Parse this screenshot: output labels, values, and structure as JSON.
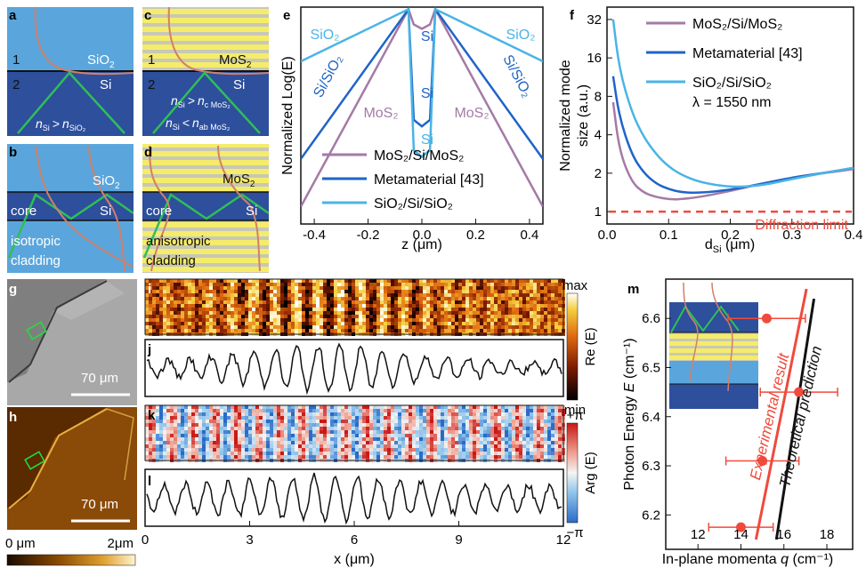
{
  "colors": {
    "sio2": "#5aa6dc",
    "si_dark": "#2d4f9c",
    "mos2_yellow": "#f5ec6a",
    "mos2_gray": "#c8c8b6",
    "purple": "#a47aa6",
    "blue": "#1f64c8",
    "light_blue": "#4ab4e6",
    "red": "#f04a3c",
    "black": "#111111",
    "green": "#2fbf57",
    "mode_curve": "#d0806a"
  },
  "panels": {
    "a": {
      "letter": "a",
      "label_1": "1",
      "label_2": "2",
      "material_top": "SiO",
      "material_top_sub": "2",
      "material_core": "Si",
      "cond_n": "n",
      "cond_si_sub": "Si",
      "cond_op": ">",
      "cond_n2": "n",
      "cond_sio2_sub": "SiO₂"
    },
    "b": {
      "letter": "b",
      "material_top": "SiO",
      "material_top_sub": "2",
      "material_core": "Si",
      "core_label": "core",
      "cladding_line1": "isotropic",
      "cladding_line2": "cladding"
    },
    "c": {
      "letter": "c",
      "label_1": "1",
      "label_2": "2",
      "material_top": "MoS",
      "material_top_sub": "2",
      "material_core": "Si",
      "cond1_n": "n",
      "cond1_sub": "Si",
      "cond1_op": ">",
      "cond1_n2": "n",
      "cond1_sub2": "c MoS₂",
      "cond2_n": "n",
      "cond2_sub": "Si",
      "cond2_op": "<",
      "cond2_n2": "n",
      "cond2_sub2": "ab MoS₂"
    },
    "d": {
      "letter": "d",
      "material_top": "MoS",
      "material_top_sub": "2",
      "material_core": "Si",
      "core_label": "core",
      "cladding_line1": "anisotropic",
      "cladding_line2": "cladding"
    },
    "g": {
      "letter": "g",
      "scale": "70 μm"
    },
    "h": {
      "letter": "h",
      "scale": "70 μm",
      "cbar_min": "0 μm",
      "cbar_max": "2μm"
    },
    "i": {
      "letter": "i",
      "cbar_max": "max",
      "cbar_label": "Re (E)",
      "cbar_min": "min"
    },
    "j": {
      "letter": "j"
    },
    "k": {
      "letter": "k",
      "cbar_max": "+π",
      "cbar_label": "Arg (E)",
      "cbar_min": "−π"
    },
    "l": {
      "letter": "l"
    }
  },
  "chart_data": [
    {
      "id": "e",
      "type": "line",
      "title": "",
      "xlabel": "z (μm)",
      "ylabel": "Normalized Log(E)",
      "xlim": [
        -0.45,
        0.45
      ],
      "xticks": [
        "-0.4",
        "-0.2",
        "0.0",
        "0.2",
        "0.4"
      ],
      "xtick_values": [
        -0.4,
        -0.2,
        0.0,
        0.2,
        0.4
      ],
      "ylim": [
        -5,
        0
      ],
      "region_labels": [
        "SiO₂",
        "SiO₂",
        "Si/SiO₂",
        "Si/SiO₂",
        "Si",
        "Si",
        "Si",
        "MoS₂",
        "MoS₂"
      ],
      "series": [
        {
          "name": "MoS₂/Si/MoS₂",
          "color": "#a47aa6",
          "x": [
            -0.45,
            -0.05,
            -0.03,
            0.0,
            0.03,
            0.05,
            0.45
          ],
          "y": [
            -4.6,
            -0.05,
            -0.4,
            -0.5,
            -0.4,
            -0.05,
            -4.6
          ]
        },
        {
          "name": "Metamaterial [43]",
          "color": "#1f64c8",
          "x": [
            -0.45,
            -0.05,
            -0.03,
            0.0,
            0.03,
            0.05,
            0.45
          ],
          "y": [
            -3.5,
            -0.05,
            -2.6,
            -2.75,
            -2.6,
            -0.05,
            -3.5
          ]
        },
        {
          "name": "SiO₂/Si/SiO₂",
          "color": "#4ab4e6",
          "x": [
            -0.45,
            -0.05,
            -0.03,
            0.0,
            0.03,
            0.05,
            0.45
          ],
          "y": [
            -1.25,
            -0.05,
            -3.3,
            -3.45,
            -3.3,
            -0.05,
            -1.25
          ]
        }
      ],
      "legend": "bottom-center"
    },
    {
      "id": "f",
      "type": "line",
      "title": "",
      "xlabel": "d_Si (μm)",
      "ylabel": "Normalized mode size (a.u.)",
      "ylabel_line1": "Normalized mode",
      "ylabel_line2": "size (a.u.)",
      "x_label_main": "d",
      "x_label_sub": "Si",
      "x_label_unit": " (μm)",
      "xlim": [
        0,
        0.4
      ],
      "xticks": [
        "0.0",
        "0.1",
        "0.2",
        "0.3",
        "0.4"
      ],
      "xtick_values": [
        0.0,
        0.1,
        0.2,
        0.3,
        0.4
      ],
      "yscale": "log",
      "ylim": [
        0.8,
        40
      ],
      "yticks": [
        "1",
        "2",
        "4",
        "8",
        "16",
        "32"
      ],
      "ytick_values": [
        1,
        2,
        4,
        8,
        16,
        32
      ],
      "annotation": "λ = 1550 nm",
      "reference_line": {
        "y": 1,
        "label": "Diffraction limit",
        "color": "#f04a3c"
      },
      "series": [
        {
          "name": "MoS₂/Si/MoS₂",
          "color": "#a47aa6",
          "x": [
            0.01,
            0.02,
            0.04,
            0.06,
            0.08,
            0.1,
            0.12,
            0.15,
            0.2,
            0.25,
            0.3,
            0.35,
            0.4
          ],
          "y": [
            7.2,
            3.0,
            1.7,
            1.4,
            1.3,
            1.25,
            1.25,
            1.3,
            1.45,
            1.65,
            1.85,
            2.0,
            2.15
          ]
        },
        {
          "name": "Metamaterial [43]",
          "color": "#1f64c8",
          "x": [
            0.01,
            0.02,
            0.04,
            0.06,
            0.08,
            0.1,
            0.12,
            0.15,
            0.2,
            0.25,
            0.3,
            0.35,
            0.4
          ],
          "y": [
            11.5,
            5.5,
            2.8,
            2.0,
            1.65,
            1.5,
            1.42,
            1.4,
            1.48,
            1.65,
            1.85,
            2.0,
            2.2
          ]
        },
        {
          "name": "SiO₂/Si/SiO₂",
          "color": "#4ab4e6",
          "x": [
            0.01,
            0.02,
            0.04,
            0.06,
            0.08,
            0.1,
            0.12,
            0.15,
            0.2,
            0.25,
            0.3,
            0.35,
            0.4
          ],
          "y": [
            32,
            13,
            6.0,
            3.8,
            2.8,
            2.25,
            1.95,
            1.7,
            1.55,
            1.6,
            1.8,
            2.0,
            2.2
          ]
        }
      ],
      "legend": "top-right"
    },
    {
      "id": "j",
      "type": "line",
      "xlabel": "",
      "xlim": [
        0,
        12
      ],
      "series": [
        {
          "color": "#111111",
          "kind": "oscillation",
          "period": 0.62,
          "amplitude_center": 5.5
        }
      ]
    },
    {
      "id": "l",
      "type": "line",
      "xlabel": "x (μm)",
      "xlim": [
        0,
        12
      ],
      "xticks": [
        "0",
        "3",
        "6",
        "9",
        "12"
      ],
      "xtick_values": [
        0,
        3,
        6,
        9,
        12
      ],
      "series": [
        {
          "color": "#111111",
          "kind": "oscillation",
          "period": 0.62,
          "amplitude_center": 5.5
        }
      ]
    },
    {
      "id": "m",
      "type": "scatter",
      "xlabel": "In-plane momenta q (cm⁻¹)",
      "x_label_main": "In-plane momenta ",
      "x_label_q": "q",
      "x_label_unit": " (cm⁻¹)",
      "ylabel": "Photon Energy E (cm⁻¹)",
      "y_label_main": "Photon Energy ",
      "y_label_e": "E",
      "y_label_unit": " (cm⁻¹)",
      "xlim": [
        10.5,
        19.2
      ],
      "xticks": [
        "12",
        "14",
        "16",
        "18"
      ],
      "xtick_values": [
        12,
        14,
        16,
        18
      ],
      "ylim": [
        6.13,
        6.68
      ],
      "yticks": [
        "6.2",
        "6.3",
        "6.4",
        "6.5",
        "6.6"
      ],
      "ytick_values": [
        6.2,
        6.3,
        6.4,
        6.5,
        6.6
      ],
      "points": [
        {
          "x": 15.2,
          "y": 6.6,
          "xerr": 1.8
        },
        {
          "x": 16.7,
          "y": 6.45,
          "xerr": 1.8
        },
        {
          "x": 15.0,
          "y": 6.31,
          "xerr": 1.7
        },
        {
          "x": 14.0,
          "y": 6.175,
          "xerr": 1.5
        }
      ],
      "lines": [
        {
          "name": "Experimental result",
          "color": "#f04a3c",
          "x": [
            14.7,
            17.05
          ],
          "y": [
            6.15,
            6.66
          ]
        },
        {
          "name": "Theoretical prediction",
          "color": "#111111",
          "x": [
            15.65,
            17.4
          ],
          "y": [
            6.15,
            6.64
          ]
        }
      ]
    }
  ]
}
